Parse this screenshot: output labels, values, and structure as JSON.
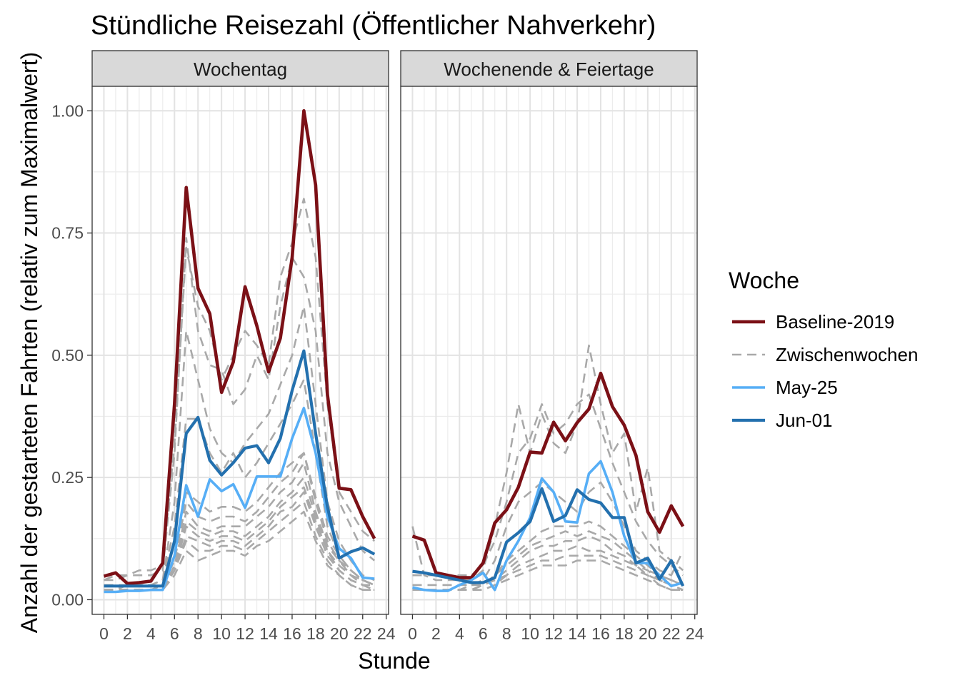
{
  "chart_data": {
    "type": "line",
    "title": "Stündliche Reisezahl (Öffentlicher Nahverkehr)",
    "xlabel": "Stunde",
    "ylabel": "Anzahl der gestarteten Fahrten (relativ zum Maximalwert)",
    "xlim": [
      -1,
      24.2
    ],
    "ylim": [
      -0.03,
      1.05
    ],
    "x_ticks": [
      0,
      2,
      4,
      6,
      8,
      10,
      12,
      14,
      16,
      18,
      20,
      22,
      24
    ],
    "x_tick_labels": [
      "0",
      "2",
      "4",
      "6",
      "8",
      "10",
      "12",
      "14",
      "16",
      "18",
      "20",
      "22",
      "24"
    ],
    "y_ticks": [
      0,
      0.25,
      0.5,
      0.75,
      1.0
    ],
    "y_tick_labels": [
      "0.00",
      "0.25",
      "0.50",
      "0.75",
      "1.00"
    ],
    "grid": true,
    "legend": {
      "title": "Woche",
      "position": "right",
      "entries": [
        {
          "label": "Baseline-2019",
          "color": "#7b1016",
          "style": "solid"
        },
        {
          "label": "Zwischenwochen",
          "color": "#a9a9a9",
          "style": "dashed"
        },
        {
          "label": "May-25",
          "color": "#56aef6",
          "style": "solid"
        },
        {
          "label": "Jun-01",
          "color": "#2370ae",
          "style": "solid"
        }
      ]
    },
    "panels": [
      {
        "label": "Wochentag",
        "series": [
          {
            "group": "Zwischenwochen",
            "values": [
              0.02,
              0.02,
              0.02,
              0.02,
              0.02,
              0.02,
              0.05,
              0.1,
              0.08,
              0.09,
              0.1,
              0.1,
              0.09,
              0.11,
              0.12,
              0.14,
              0.16,
              0.18,
              0.12,
              0.07,
              0.05,
              0.03,
              0.02,
              0.02
            ]
          },
          {
            "group": "Zwischenwochen",
            "values": [
              0.02,
              0.02,
              0.02,
              0.02,
              0.02,
              0.02,
              0.06,
              0.12,
              0.1,
              0.1,
              0.11,
              0.11,
              0.1,
              0.12,
              0.14,
              0.16,
              0.18,
              0.2,
              0.13,
              0.08,
              0.05,
              0.03,
              0.02,
              0.02
            ]
          },
          {
            "group": "Zwischenwochen",
            "values": [
              0.02,
              0.02,
              0.02,
              0.02,
              0.02,
              0.02,
              0.06,
              0.13,
              0.12,
              0.11,
              0.12,
              0.12,
              0.11,
              0.13,
              0.15,
              0.18,
              0.19,
              0.22,
              0.15,
              0.09,
              0.06,
              0.04,
              0.03,
              0.02
            ]
          },
          {
            "group": "Zwischenwochen",
            "values": [
              0.02,
              0.02,
              0.02,
              0.02,
              0.02,
              0.02,
              0.06,
              0.15,
              0.13,
              0.12,
              0.13,
              0.13,
              0.12,
              0.14,
              0.16,
              0.19,
              0.21,
              0.23,
              0.16,
              0.1,
              0.06,
              0.04,
              0.03,
              0.02
            ]
          },
          {
            "group": "Zwischenwochen",
            "values": [
              0.02,
              0.02,
              0.02,
              0.02,
              0.02,
              0.02,
              0.07,
              0.16,
              0.14,
              0.13,
              0.14,
              0.14,
              0.13,
              0.15,
              0.17,
              0.2,
              0.22,
              0.25,
              0.17,
              0.1,
              0.07,
              0.05,
              0.03,
              0.03
            ]
          },
          {
            "group": "Zwischenwochen",
            "values": [
              0.02,
              0.02,
              0.02,
              0.02,
              0.02,
              0.02,
              0.07,
              0.18,
              0.15,
              0.14,
              0.15,
              0.15,
              0.15,
              0.17,
              0.19,
              0.22,
              0.24,
              0.28,
              0.18,
              0.11,
              0.08,
              0.05,
              0.04,
              0.03
            ]
          },
          {
            "group": "Zwischenwochen",
            "values": [
              0.02,
              0.02,
              0.02,
              0.02,
              0.02,
              0.03,
              0.08,
              0.2,
              0.17,
              0.16,
              0.17,
              0.17,
              0.16,
              0.18,
              0.21,
              0.24,
              0.26,
              0.3,
              0.2,
              0.12,
              0.08,
              0.06,
              0.04,
              0.03
            ]
          },
          {
            "group": "Zwischenwochen",
            "values": [
              0.02,
              0.02,
              0.02,
              0.02,
              0.02,
              0.03,
              0.09,
              0.22,
              0.2,
              0.18,
              0.19,
              0.19,
              0.18,
              0.2,
              0.23,
              0.26,
              0.28,
              0.3,
              0.21,
              0.13,
              0.09,
              0.06,
              0.04,
              0.03
            ]
          },
          {
            "group": "Zwischenwochen",
            "values": [
              0.02,
              0.02,
              0.03,
              0.03,
              0.03,
              0.04,
              0.15,
              0.37,
              0.37,
              0.3,
              0.26,
              0.3,
              0.25,
              0.28,
              0.32,
              0.36,
              0.4,
              0.45,
              0.3,
              0.15,
              0.09,
              0.06,
              0.04,
              0.03
            ]
          },
          {
            "group": "Zwischenwochen",
            "values": [
              0.03,
              0.03,
              0.03,
              0.03,
              0.03,
              0.04,
              0.2,
              0.55,
              0.45,
              0.35,
              0.3,
              0.28,
              0.32,
              0.35,
              0.38,
              0.44,
              0.5,
              0.6,
              0.4,
              0.2,
              0.12,
              0.08,
              0.05,
              0.04
            ]
          },
          {
            "group": "Zwischenwochen",
            "values": [
              0.04,
              0.04,
              0.05,
              0.05,
              0.05,
              0.06,
              0.3,
              0.74,
              0.55,
              0.48,
              0.47,
              0.4,
              0.43,
              0.5,
              0.45,
              0.6,
              0.7,
              0.66,
              0.55,
              0.3,
              0.2,
              0.15,
              0.1,
              0.08
            ]
          },
          {
            "group": "Zwischenwochen",
            "values": [
              0.04,
              0.05,
              0.05,
              0.06,
              0.06,
              0.07,
              0.32,
              0.72,
              0.6,
              0.55,
              0.45,
              0.5,
              0.55,
              0.52,
              0.48,
              0.66,
              0.73,
              0.82,
              0.7,
              0.4,
              0.22,
              0.18,
              0.14,
              0.12
            ]
          },
          {
            "group": "Baseline-2019",
            "values": [
              0.048,
              0.055,
              0.033,
              0.035,
              0.038,
              0.075,
              0.4,
              0.843,
              0.637,
              0.585,
              0.424,
              0.486,
              0.64,
              0.56,
              0.466,
              0.535,
              0.7,
              1.0,
              0.848,
              0.42,
              0.228,
              0.225,
              0.17,
              0.125
            ]
          },
          {
            "group": "May-25",
            "values": [
              0.016,
              0.016,
              0.018,
              0.018,
              0.02,
              0.02,
              0.09,
              0.234,
              0.17,
              0.246,
              0.222,
              0.236,
              0.188,
              0.252,
              0.252,
              0.252,
              0.33,
              0.392,
              0.3,
              0.17,
              0.105,
              0.085,
              0.045,
              0.043
            ]
          },
          {
            "group": "Jun-01",
            "values": [
              0.028,
              0.028,
              0.028,
              0.028,
              0.028,
              0.028,
              0.12,
              0.34,
              0.373,
              0.285,
              0.255,
              0.28,
              0.31,
              0.315,
              0.28,
              0.33,
              0.428,
              0.509,
              0.34,
              0.19,
              0.085,
              0.098,
              0.106,
              0.093
            ]
          }
        ]
      },
      {
        "label": "Wochenende & Feiertage",
        "series": [
          {
            "group": "Zwischenwochen",
            "values": [
              0.02,
              0.02,
              0.02,
              0.02,
              0.02,
              0.02,
              0.02,
              0.03,
              0.04,
              0.05,
              0.06,
              0.07,
              0.07,
              0.07,
              0.08,
              0.08,
              0.08,
              0.07,
              0.06,
              0.05,
              0.04,
              0.03,
              0.02,
              0.02
            ]
          },
          {
            "group": "Zwischenwochen",
            "values": [
              0.02,
              0.02,
              0.02,
              0.02,
              0.02,
              0.02,
              0.02,
              0.03,
              0.05,
              0.06,
              0.07,
              0.08,
              0.08,
              0.09,
              0.09,
              0.09,
              0.09,
              0.08,
              0.07,
              0.06,
              0.05,
              0.03,
              0.02,
              0.02
            ]
          },
          {
            "group": "Zwischenwochen",
            "values": [
              0.02,
              0.02,
              0.02,
              0.02,
              0.02,
              0.02,
              0.03,
              0.04,
              0.05,
              0.07,
              0.08,
              0.09,
              0.1,
              0.1,
              0.11,
              0.1,
              0.1,
              0.09,
              0.08,
              0.07,
              0.05,
              0.04,
              0.03,
              0.02
            ]
          },
          {
            "group": "Zwischenwochen",
            "values": [
              0.02,
              0.02,
              0.02,
              0.02,
              0.02,
              0.02,
              0.03,
              0.04,
              0.06,
              0.08,
              0.1,
              0.11,
              0.11,
              0.12,
              0.12,
              0.13,
              0.12,
              0.1,
              0.09,
              0.07,
              0.06,
              0.04,
              0.03,
              0.03
            ]
          },
          {
            "group": "Zwischenwochen",
            "values": [
              0.02,
              0.02,
              0.02,
              0.02,
              0.02,
              0.02,
              0.03,
              0.05,
              0.07,
              0.09,
              0.11,
              0.12,
              0.13,
              0.14,
              0.13,
              0.14,
              0.13,
              0.12,
              0.1,
              0.08,
              0.06,
              0.05,
              0.04,
              0.03
            ]
          },
          {
            "group": "Zwischenwochen",
            "values": [
              0.02,
              0.02,
              0.02,
              0.02,
              0.02,
              0.03,
              0.03,
              0.05,
              0.08,
              0.1,
              0.12,
              0.14,
              0.15,
              0.15,
              0.15,
              0.16,
              0.15,
              0.13,
              0.11,
              0.09,
              0.07,
              0.05,
              0.04,
              0.03
            ]
          },
          {
            "group": "Zwischenwochen",
            "values": [
              0.03,
              0.03,
              0.03,
              0.03,
              0.03,
              0.03,
              0.04,
              0.08,
              0.15,
              0.2,
              0.22,
              0.24,
              0.22,
              0.2,
              0.18,
              0.22,
              0.24,
              0.2,
              0.15,
              0.1,
              0.08,
              0.06,
              0.05,
              0.1
            ]
          },
          {
            "group": "Zwischenwochen",
            "values": [
              0.15,
              0.05,
              0.04,
              0.04,
              0.04,
              0.04,
              0.06,
              0.15,
              0.26,
              0.4,
              0.3,
              0.38,
              0.32,
              0.3,
              0.36,
              0.52,
              0.4,
              0.3,
              0.34,
              0.18,
              0.27,
              0.1,
              0.08,
              0.06
            ]
          },
          {
            "group": "Zwischenwochen",
            "values": [
              0.05,
              0.05,
              0.05,
              0.05,
              0.05,
              0.05,
              0.07,
              0.12,
              0.2,
              0.3,
              0.33,
              0.4,
              0.34,
              0.36,
              0.4,
              0.42,
              0.35,
              0.28,
              0.22,
              0.16,
              0.12,
              0.09,
              0.07,
              0.05
            ]
          },
          {
            "group": "Baseline-2019",
            "values": [
              0.13,
              0.122,
              0.055,
              0.05,
              0.045,
              0.045,
              0.075,
              0.157,
              0.184,
              0.23,
              0.302,
              0.3,
              0.363,
              0.325,
              0.362,
              0.39,
              0.463,
              0.395,
              0.357,
              0.295,
              0.18,
              0.138,
              0.192,
              0.15
            ]
          },
          {
            "group": "May-25",
            "values": [
              0.025,
              0.02,
              0.018,
              0.018,
              0.03,
              0.04,
              0.055,
              0.02,
              0.08,
              0.12,
              0.168,
              0.248,
              0.22,
              0.16,
              0.158,
              0.258,
              0.283,
              0.22,
              0.13,
              0.075,
              0.075,
              0.05,
              0.028,
              0.035
            ]
          },
          {
            "group": "Jun-01",
            "values": [
              0.058,
              0.055,
              0.05,
              0.045,
              0.04,
              0.035,
              0.035,
              0.045,
              0.118,
              0.137,
              0.16,
              0.227,
              0.16,
              0.172,
              0.225,
              0.205,
              0.198,
              0.168,
              0.168,
              0.075,
              0.085,
              0.042,
              0.08,
              0.028
            ]
          }
        ]
      }
    ]
  }
}
